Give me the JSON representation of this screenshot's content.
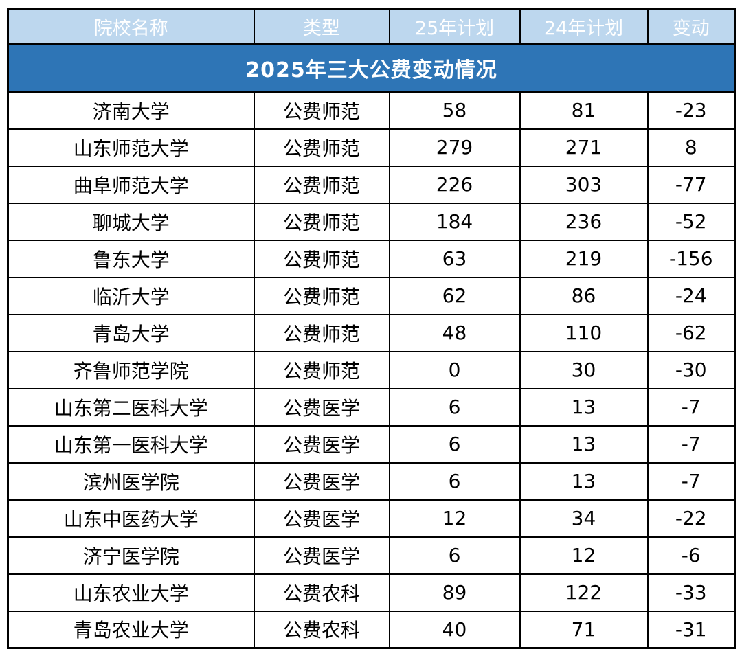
{
  "colors": {
    "title_bg": "#2E75B6",
    "header_bg": "#BDD7EE",
    "title_text": "#FFFFFF",
    "header_text": "#FFFFFF",
    "body_text": "#000000",
    "border": "#000000"
  },
  "chart_data": {
    "type": "table",
    "title": "2025年三大公费变动情况",
    "columns": [
      "院校名称",
      "类型",
      "25年计划",
      "24年计划",
      "变动"
    ],
    "rows": [
      [
        "济南大学",
        "公费师范",
        "58",
        "81",
        "-23"
      ],
      [
        "山东师范大学",
        "公费师范",
        "279",
        "271",
        "8"
      ],
      [
        "曲阜师范大学",
        "公费师范",
        "226",
        "303",
        "-77"
      ],
      [
        "聊城大学",
        "公费师范",
        "184",
        "236",
        "-52"
      ],
      [
        "鲁东大学",
        "公费师范",
        "63",
        "219",
        "-156"
      ],
      [
        "临沂大学",
        "公费师范",
        "62",
        "86",
        "-24"
      ],
      [
        "青岛大学",
        "公费师范",
        "48",
        "110",
        "-62"
      ],
      [
        "齐鲁师范学院",
        "公费师范",
        "0",
        "30",
        "-30"
      ],
      [
        "山东第二医科大学",
        "公费医学",
        "6",
        "13",
        "-7"
      ],
      [
        "山东第一医科大学",
        "公费医学",
        "6",
        "13",
        "-7"
      ],
      [
        "滨州医学院",
        "公费医学",
        "6",
        "13",
        "-7"
      ],
      [
        "山东中医药大学",
        "公费医学",
        "12",
        "34",
        "-22"
      ],
      [
        "济宁医学院",
        "公费医学",
        "6",
        "12",
        "-6"
      ],
      [
        "山东农业大学",
        "公费农科",
        "89",
        "122",
        "-33"
      ],
      [
        "青岛农业大学",
        "公费农科",
        "40",
        "71",
        "-31"
      ]
    ]
  }
}
